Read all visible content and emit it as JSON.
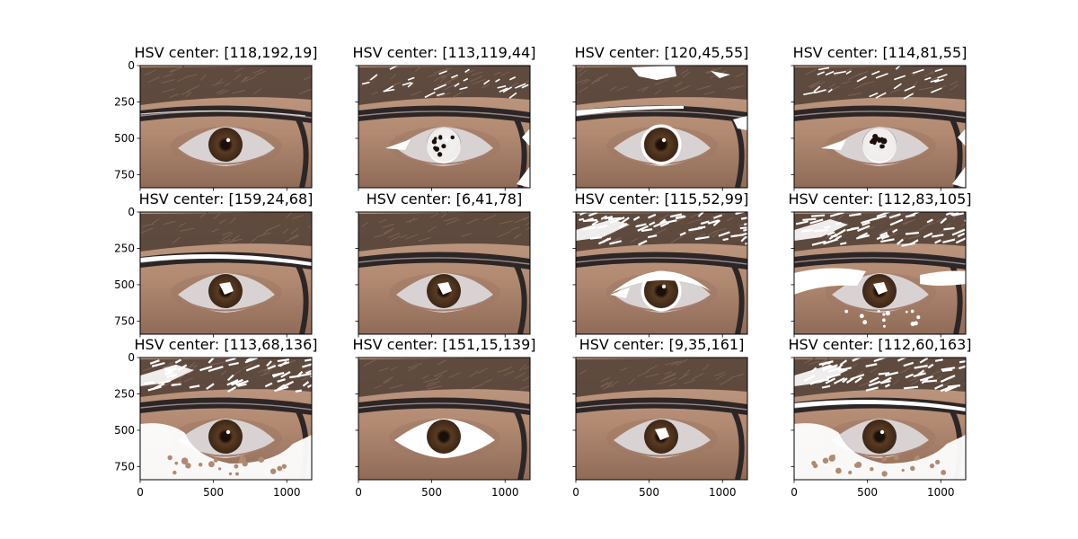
{
  "chart_data": {
    "type": "image-grid",
    "rows": 3,
    "cols": 4,
    "xlim": [
      0,
      1170
    ],
    "ylim": [
      0,
      840
    ],
    "x_ticks": [
      0,
      500,
      1000
    ],
    "y_ticks": [
      0,
      250,
      500,
      750
    ],
    "x_ticks_shown_on_row": 3,
    "y_ticks_shown_on_col": 1,
    "colors": {
      "skin": "#b28a72",
      "skin_light": "#c39d86",
      "skin_shadow": "#8f6b57",
      "hair": "#4e3c33",
      "glasses": "#2d2626",
      "sclera": "#d8d3d2",
      "iris": "#5a3b22",
      "pupil": "#1a0f0a",
      "mask": "#ffffff"
    },
    "panels": [
      {
        "title": "HSV center: [118,192,19]",
        "mask": [
          "frame-thin"
        ]
      },
      {
        "title": "HSV center: [113,119,44]",
        "mask": [
          "brow-light",
          "iris-spots",
          "frame-corner"
        ]
      },
      {
        "title": "HSV center: [120,45,55]",
        "mask": [
          "brow-top",
          "frame-left",
          "iris-ring"
        ]
      },
      {
        "title": "HSV center: [114,81,55]",
        "mask": [
          "brow-light",
          "iris-spots",
          "frame-corner"
        ]
      },
      {
        "title": "HSV center: [159,24,68]",
        "mask": [
          "frame-top",
          "iris-small"
        ]
      },
      {
        "title": "HSV center: [6,41,78]",
        "mask": [
          "iris-small"
        ]
      },
      {
        "title": "HSV center: [115,52,99]",
        "mask": [
          "brow-heavy",
          "iris-ring",
          "sclera-upper"
        ]
      },
      {
        "title": "HSV center: [112,83,105]",
        "mask": [
          "brow-heavy",
          "lower-skin",
          "iris-small"
        ]
      },
      {
        "title": "HSV center: [113,68,136]",
        "mask": [
          "brow-heavy",
          "lower-skin-heavy"
        ]
      },
      {
        "title": "HSV center: [151,15,139]",
        "mask": [
          "sclera-full"
        ]
      },
      {
        "title": "HSV center: [9,35,161]",
        "mask": [
          "iris-small"
        ]
      },
      {
        "title": "HSV center: [112,60,163]",
        "mask": [
          "brow-heavy",
          "frame-top",
          "lower-skin-heavy"
        ]
      }
    ]
  }
}
